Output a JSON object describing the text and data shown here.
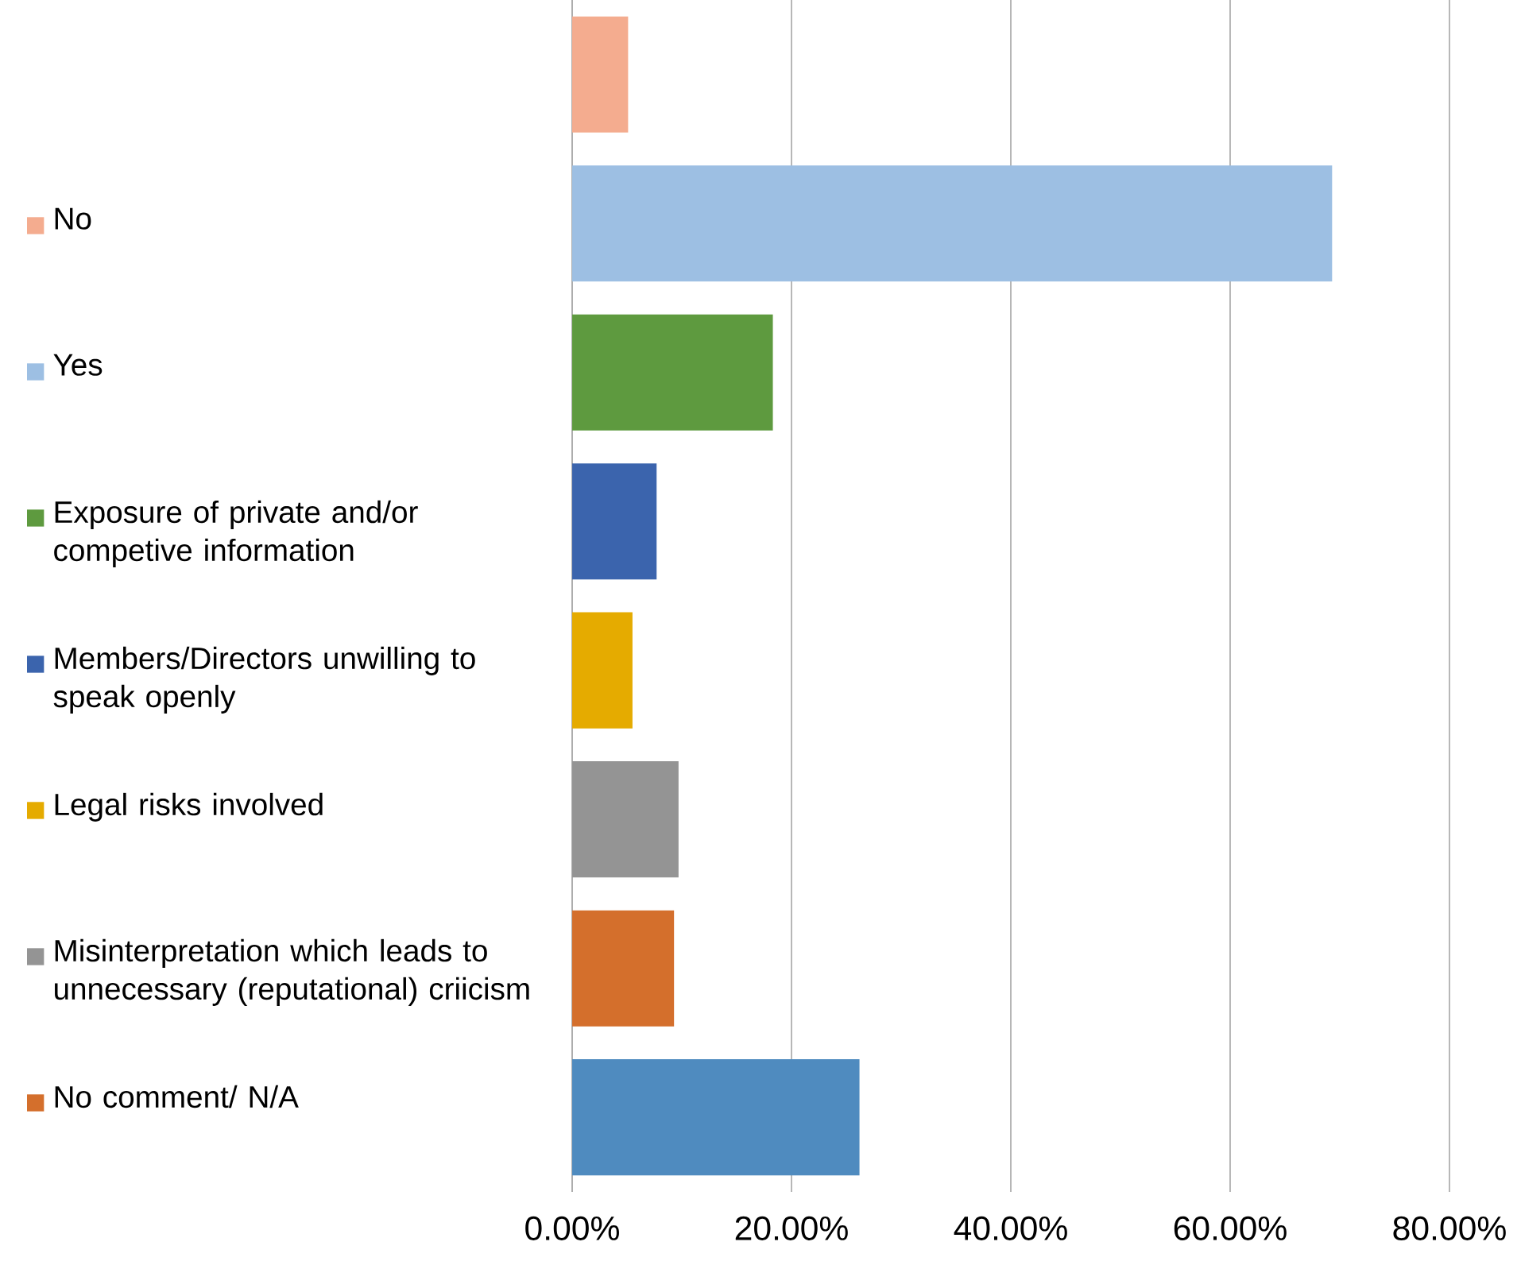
{
  "chart_data": {
    "type": "bar",
    "orientation": "horizontal",
    "categories": [
      null,
      null,
      null,
      null,
      null,
      null,
      null,
      null
    ],
    "series": [
      {
        "name": "No",
        "color": "#f4ac8f",
        "values": [
          5.1,
          null,
          null,
          null,
          null,
          null,
          null,
          null
        ]
      },
      {
        "name": "Yes",
        "color": "#9dbfe3",
        "values": [
          null,
          69.3,
          null,
          null,
          null,
          null,
          null,
          null
        ]
      },
      {
        "name": "Exposure of private and/or competive information",
        "color": "#5e9a3f",
        "values": [
          null,
          null,
          18.3,
          null,
          null,
          null,
          null,
          null
        ]
      },
      {
        "name": "Members/Directors unwilling to speak openly",
        "color": "#3b64ad",
        "values": [
          null,
          null,
          null,
          7.7,
          null,
          null,
          null,
          null
        ]
      },
      {
        "name": "Legal risks involved",
        "color": "#e5ab00",
        "values": [
          null,
          null,
          null,
          null,
          5.5,
          null,
          null,
          null
        ]
      },
      {
        "name": "Misinterpretation which leads to unnecessary (reputational) criicism",
        "color": "#949494",
        "values": [
          null,
          null,
          null,
          null,
          null,
          9.7,
          null,
          null
        ]
      },
      {
        "name": "No comment/ N/A",
        "color": "#d46f2c",
        "values": [
          null,
          null,
          null,
          null,
          null,
          null,
          9.3,
          null
        ]
      },
      {
        "color": "#4f8bbf",
        "values": [
          null,
          null,
          null,
          null,
          null,
          null,
          null,
          26.2
        ]
      }
    ],
    "xlim": [
      0,
      80
    ],
    "xticks": [
      {
        "value": 0,
        "label": "0.00%"
      },
      {
        "value": 20,
        "label": "20.00%"
      },
      {
        "value": 40,
        "label": "40.00%"
      },
      {
        "value": 60,
        "label": "60.00%"
      },
      {
        "value": 80,
        "label": "80.00%"
      }
    ],
    "grid": "x",
    "legend": "left"
  }
}
